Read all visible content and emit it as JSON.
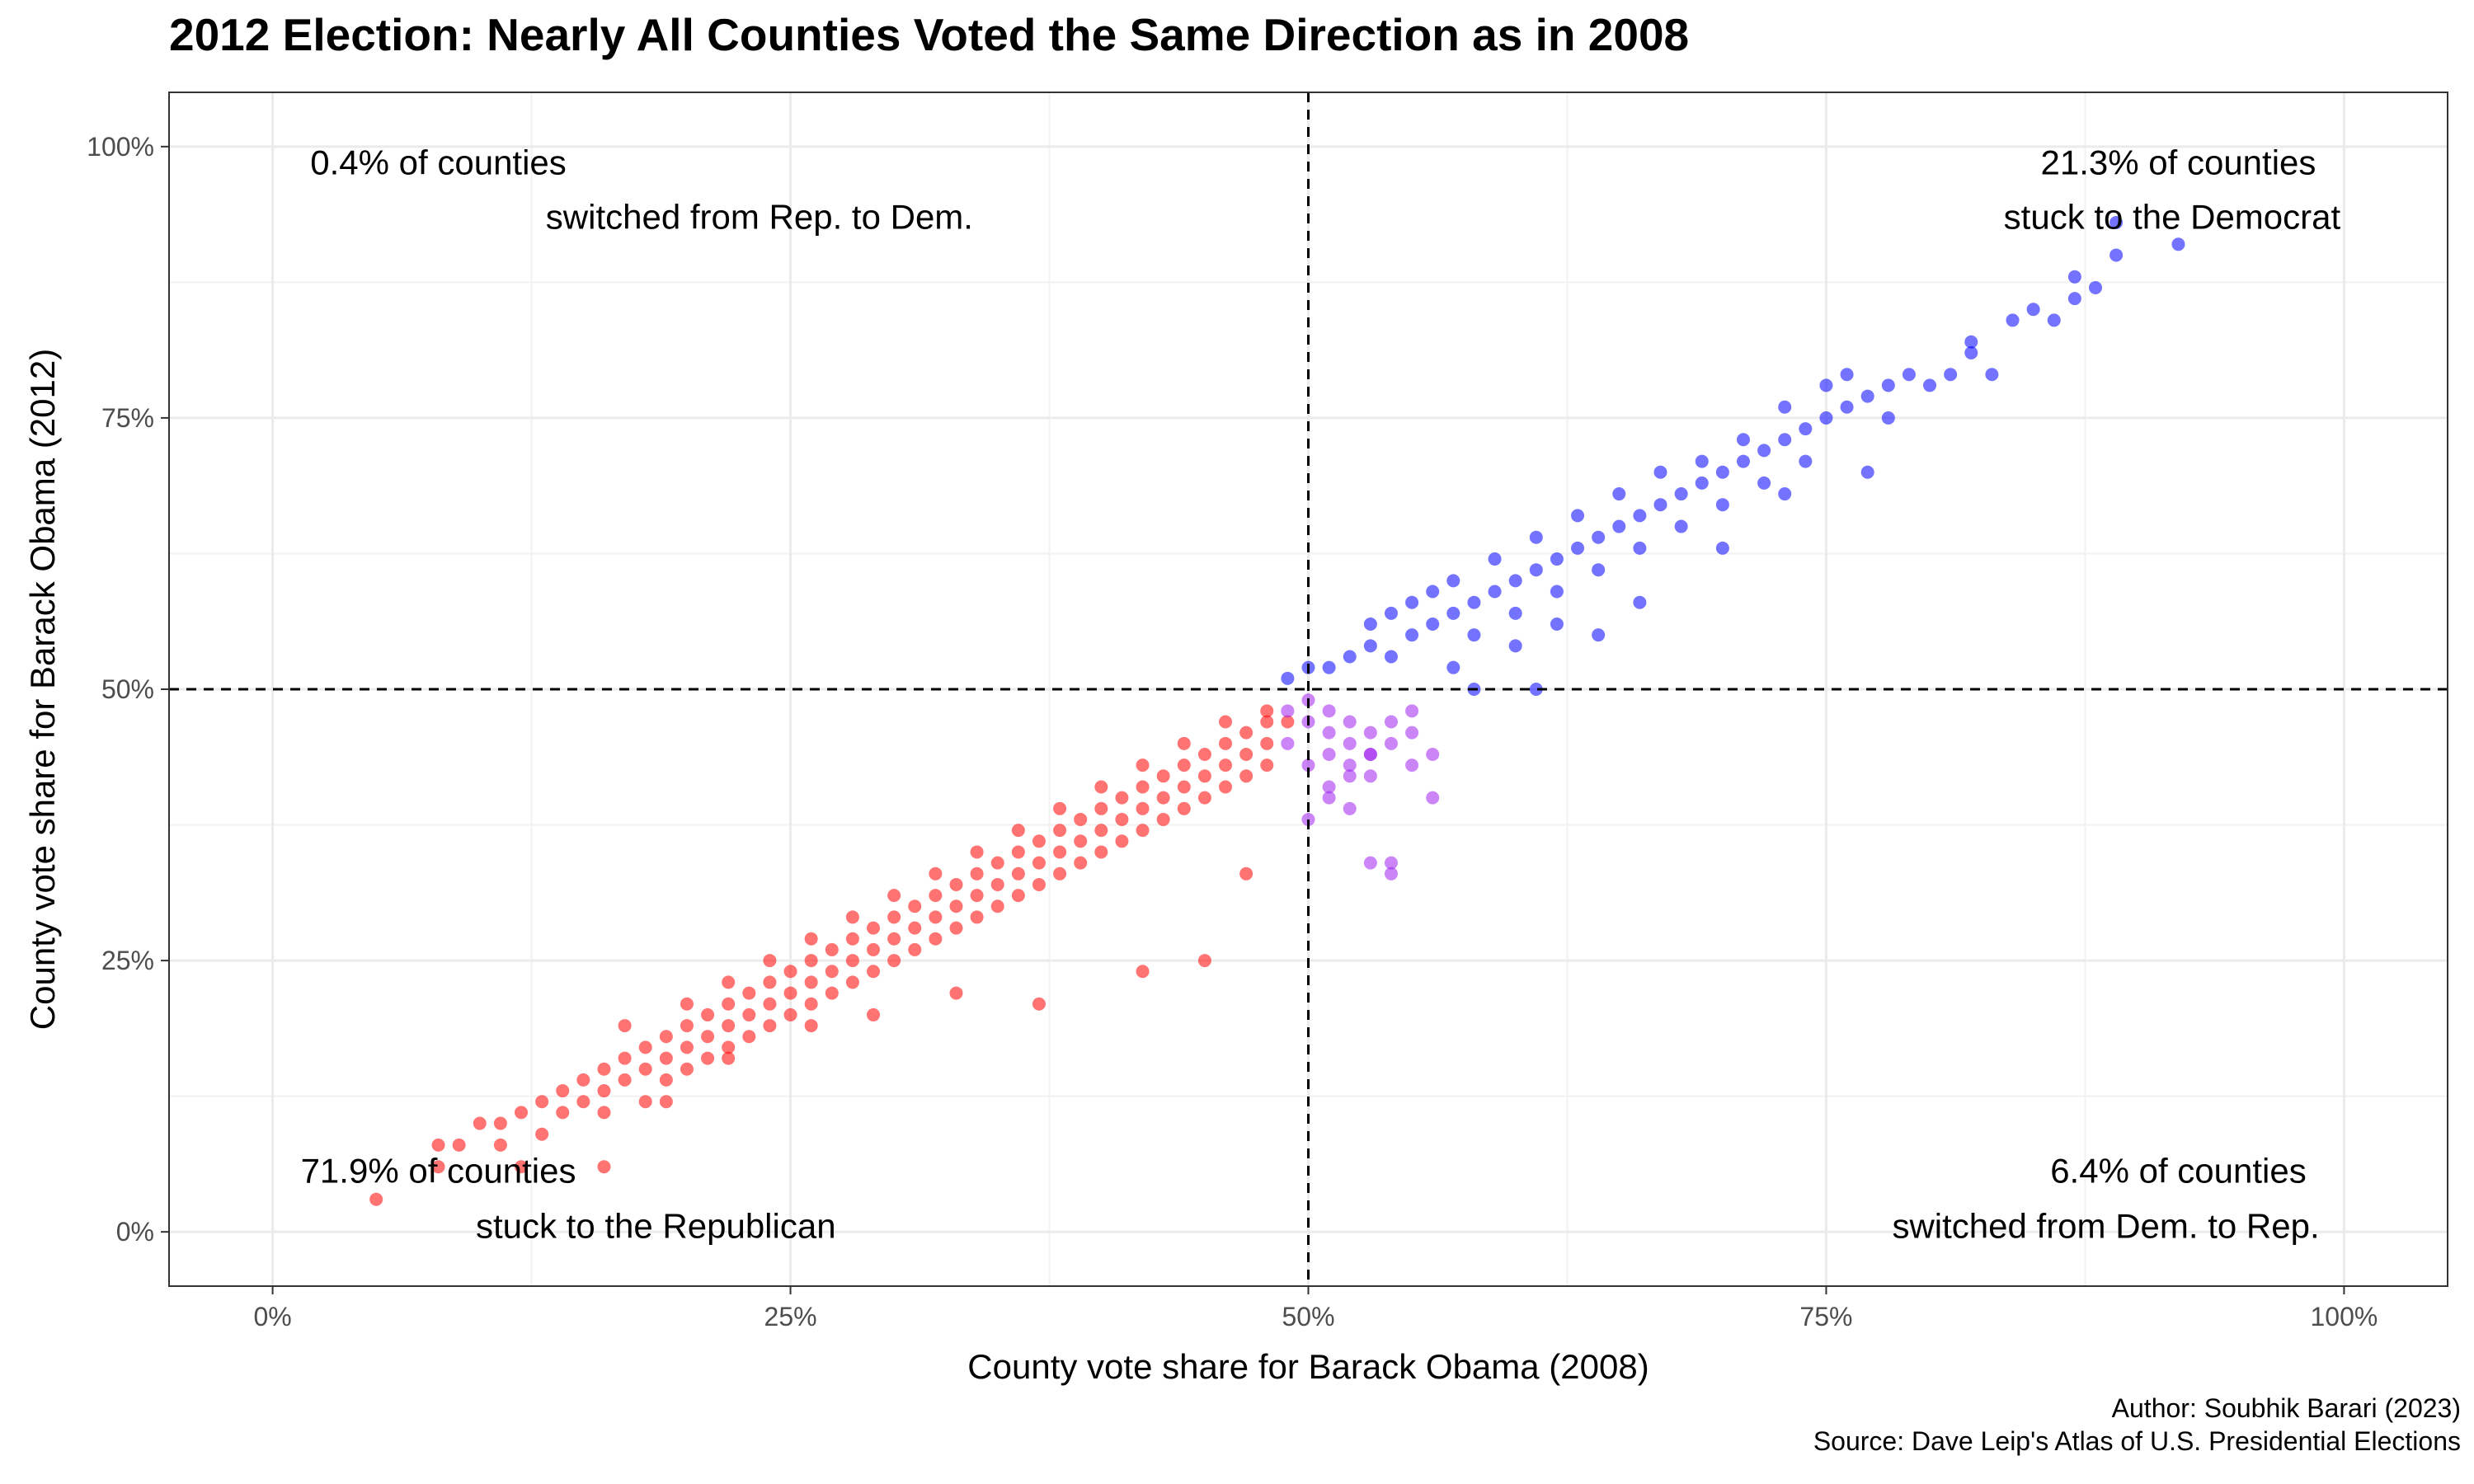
{
  "chart_data": {
    "type": "scatter",
    "title": "2012 Election: Nearly All Counties Voted the Same Direction as in 2008",
    "xlabel": "County vote share for Barack Obama (2008)",
    "ylabel": "County vote share for Barack Obama (2012)",
    "xlim": [
      -0.05,
      1.05
    ],
    "ylim": [
      -0.05,
      1.05
    ],
    "x_ticks": [
      0,
      0.25,
      0.5,
      0.75,
      1.0
    ],
    "y_ticks": [
      0,
      0.25,
      0.5,
      0.75,
      1.0
    ],
    "x_tick_labels": [
      "0%",
      "25%",
      "50%",
      "75%",
      "100%"
    ],
    "y_tick_labels": [
      "0%",
      "25%",
      "50%",
      "75%",
      "100%"
    ],
    "reference_lines": {
      "x": 0.5,
      "y": 0.5,
      "style": "dashed"
    },
    "grid": true,
    "legend": "none",
    "annotations": [
      {
        "quadrant": "top-left",
        "lines": [
          "0.4% of counties",
          "switched from Rep. to Dem."
        ]
      },
      {
        "quadrant": "top-right",
        "lines": [
          "21.3% of counties",
          "stuck to the Democrat"
        ]
      },
      {
        "quadrant": "bottom-left",
        "lines": [
          "71.9% of counties",
          "stuck to the Republican"
        ]
      },
      {
        "quadrant": "bottom-right",
        "lines": [
          "6.4% of counties",
          "switched from Dem. to Rep."
        ]
      }
    ],
    "caption": [
      "Author: Soubhik Barari (2023)",
      "Source: Dave Leip's Atlas of U.S. Presidential Elections"
    ],
    "series": [
      {
        "group": "stuck-republican",
        "color": "#ff0000",
        "x": [
          0.05,
          0.08,
          0.08,
          0.09,
          0.1,
          0.11,
          0.11,
          0.12,
          0.12,
          0.13,
          0.13,
          0.14,
          0.14,
          0.15,
          0.15,
          0.16,
          0.16,
          0.16,
          0.17,
          0.17,
          0.17,
          0.18,
          0.18,
          0.18,
          0.19,
          0.19,
          0.19,
          0.2,
          0.2,
          0.2,
          0.2,
          0.21,
          0.21,
          0.21,
          0.22,
          0.22,
          0.22,
          0.22,
          0.23,
          0.23,
          0.23,
          0.24,
          0.24,
          0.24,
          0.24,
          0.25,
          0.25,
          0.25,
          0.26,
          0.26,
          0.26,
          0.26,
          0.27,
          0.27,
          0.27,
          0.28,
          0.28,
          0.28,
          0.28,
          0.29,
          0.29,
          0.29,
          0.3,
          0.3,
          0.3,
          0.3,
          0.31,
          0.31,
          0.31,
          0.32,
          0.32,
          0.32,
          0.32,
          0.33,
          0.33,
          0.33,
          0.34,
          0.34,
          0.34,
          0.34,
          0.35,
          0.35,
          0.35,
          0.36,
          0.36,
          0.36,
          0.36,
          0.37,
          0.37,
          0.37,
          0.38,
          0.38,
          0.38,
          0.38,
          0.39,
          0.39,
          0.39,
          0.4,
          0.4,
          0.4,
          0.4,
          0.41,
          0.41,
          0.41,
          0.42,
          0.42,
          0.42,
          0.42,
          0.43,
          0.43,
          0.43,
          0.44,
          0.44,
          0.44,
          0.44,
          0.45,
          0.45,
          0.45,
          0.46,
          0.46,
          0.46,
          0.46,
          0.47,
          0.47,
          0.47,
          0.48,
          0.48,
          0.48,
          0.48,
          0.49,
          0.16,
          0.19,
          0.22,
          0.26,
          0.29,
          0.33,
          0.37,
          0.42,
          0.45,
          0.47
        ],
        "y": [
          0.03,
          0.06,
          0.08,
          0.08,
          0.1,
          0.08,
          0.1,
          0.06,
          0.11,
          0.09,
          0.12,
          0.11,
          0.13,
          0.12,
          0.14,
          0.13,
          0.15,
          0.11,
          0.14,
          0.16,
          0.19,
          0.15,
          0.17,
          0.12,
          0.16,
          0.18,
          0.14,
          0.17,
          0.19,
          0.15,
          0.21,
          0.18,
          0.2,
          0.16,
          0.19,
          0.21,
          0.17,
          0.23,
          0.2,
          0.22,
          0.18,
          0.21,
          0.23,
          0.19,
          0.25,
          0.22,
          0.24,
          0.2,
          0.23,
          0.25,
          0.21,
          0.27,
          0.24,
          0.26,
          0.22,
          0.25,
          0.27,
          0.23,
          0.29,
          0.26,
          0.28,
          0.24,
          0.27,
          0.29,
          0.25,
          0.31,
          0.28,
          0.3,
          0.26,
          0.29,
          0.31,
          0.27,
          0.33,
          0.3,
          0.32,
          0.28,
          0.31,
          0.33,
          0.29,
          0.35,
          0.32,
          0.34,
          0.3,
          0.33,
          0.35,
          0.31,
          0.37,
          0.34,
          0.36,
          0.32,
          0.35,
          0.37,
          0.33,
          0.39,
          0.36,
          0.38,
          0.34,
          0.37,
          0.39,
          0.35,
          0.41,
          0.38,
          0.4,
          0.36,
          0.39,
          0.41,
          0.37,
          0.43,
          0.4,
          0.42,
          0.38,
          0.41,
          0.43,
          0.39,
          0.45,
          0.42,
          0.44,
          0.4,
          0.43,
          0.45,
          0.41,
          0.47,
          0.44,
          0.46,
          0.42,
          0.45,
          0.47,
          0.43,
          0.48,
          0.47,
          0.06,
          0.12,
          0.16,
          0.19,
          0.2,
          0.22,
          0.21,
          0.24,
          0.25,
          0.33
        ]
      },
      {
        "group": "switched-dem-to-rep",
        "color": "#a020f0",
        "x": [
          0.49,
          0.5,
          0.5,
          0.51,
          0.51,
          0.51,
          0.52,
          0.52,
          0.52,
          0.53,
          0.53,
          0.53,
          0.54,
          0.54,
          0.55,
          0.55,
          0.56,
          0.5,
          0.51,
          0.52,
          0.53,
          0.55,
          0.49,
          0.5,
          0.51,
          0.52,
          0.54,
          0.56,
          0.53,
          0.54
        ],
        "y": [
          0.48,
          0.49,
          0.47,
          0.48,
          0.46,
          0.44,
          0.47,
          0.45,
          0.43,
          0.46,
          0.44,
          0.42,
          0.47,
          0.45,
          0.46,
          0.43,
          0.4,
          0.43,
          0.41,
          0.39,
          0.44,
          0.48,
          0.45,
          0.38,
          0.4,
          0.42,
          0.34,
          0.44,
          0.34,
          0.33
        ]
      },
      {
        "group": "stuck-democrat",
        "color": "#0000ff",
        "x": [
          0.49,
          0.5,
          0.51,
          0.52,
          0.53,
          0.53,
          0.54,
          0.54,
          0.55,
          0.55,
          0.56,
          0.56,
          0.57,
          0.57,
          0.58,
          0.58,
          0.59,
          0.59,
          0.6,
          0.6,
          0.61,
          0.61,
          0.62,
          0.62,
          0.63,
          0.63,
          0.64,
          0.64,
          0.65,
          0.65,
          0.66,
          0.66,
          0.67,
          0.67,
          0.68,
          0.68,
          0.69,
          0.69,
          0.7,
          0.7,
          0.71,
          0.71,
          0.72,
          0.72,
          0.73,
          0.73,
          0.74,
          0.74,
          0.75,
          0.75,
          0.76,
          0.76,
          0.77,
          0.78,
          0.78,
          0.79,
          0.8,
          0.81,
          0.82,
          0.82,
          0.83,
          0.84,
          0.85,
          0.86,
          0.87,
          0.87,
          0.88,
          0.89,
          0.89,
          0.92,
          0.58,
          0.6,
          0.62,
          0.66,
          0.7,
          0.77,
          0.61,
          0.57,
          0.64,
          0.73
        ],
        "y": [
          0.51,
          0.52,
          0.52,
          0.53,
          0.54,
          0.56,
          0.53,
          0.57,
          0.55,
          0.58,
          0.56,
          0.59,
          0.57,
          0.6,
          0.58,
          0.55,
          0.59,
          0.62,
          0.6,
          0.57,
          0.61,
          0.64,
          0.62,
          0.59,
          0.63,
          0.66,
          0.64,
          0.61,
          0.65,
          0.68,
          0.66,
          0.63,
          0.67,
          0.7,
          0.68,
          0.65,
          0.69,
          0.71,
          0.7,
          0.67,
          0.71,
          0.73,
          0.72,
          0.69,
          0.73,
          0.76,
          0.74,
          0.71,
          0.75,
          0.78,
          0.76,
          0.79,
          0.77,
          0.78,
          0.75,
          0.79,
          0.78,
          0.79,
          0.82,
          0.81,
          0.79,
          0.84,
          0.85,
          0.84,
          0.86,
          0.88,
          0.87,
          0.9,
          0.93,
          0.91,
          0.5,
          0.54,
          0.56,
          0.58,
          0.63,
          0.7,
          0.5,
          0.52,
          0.55,
          0.68
        ]
      }
    ]
  }
}
